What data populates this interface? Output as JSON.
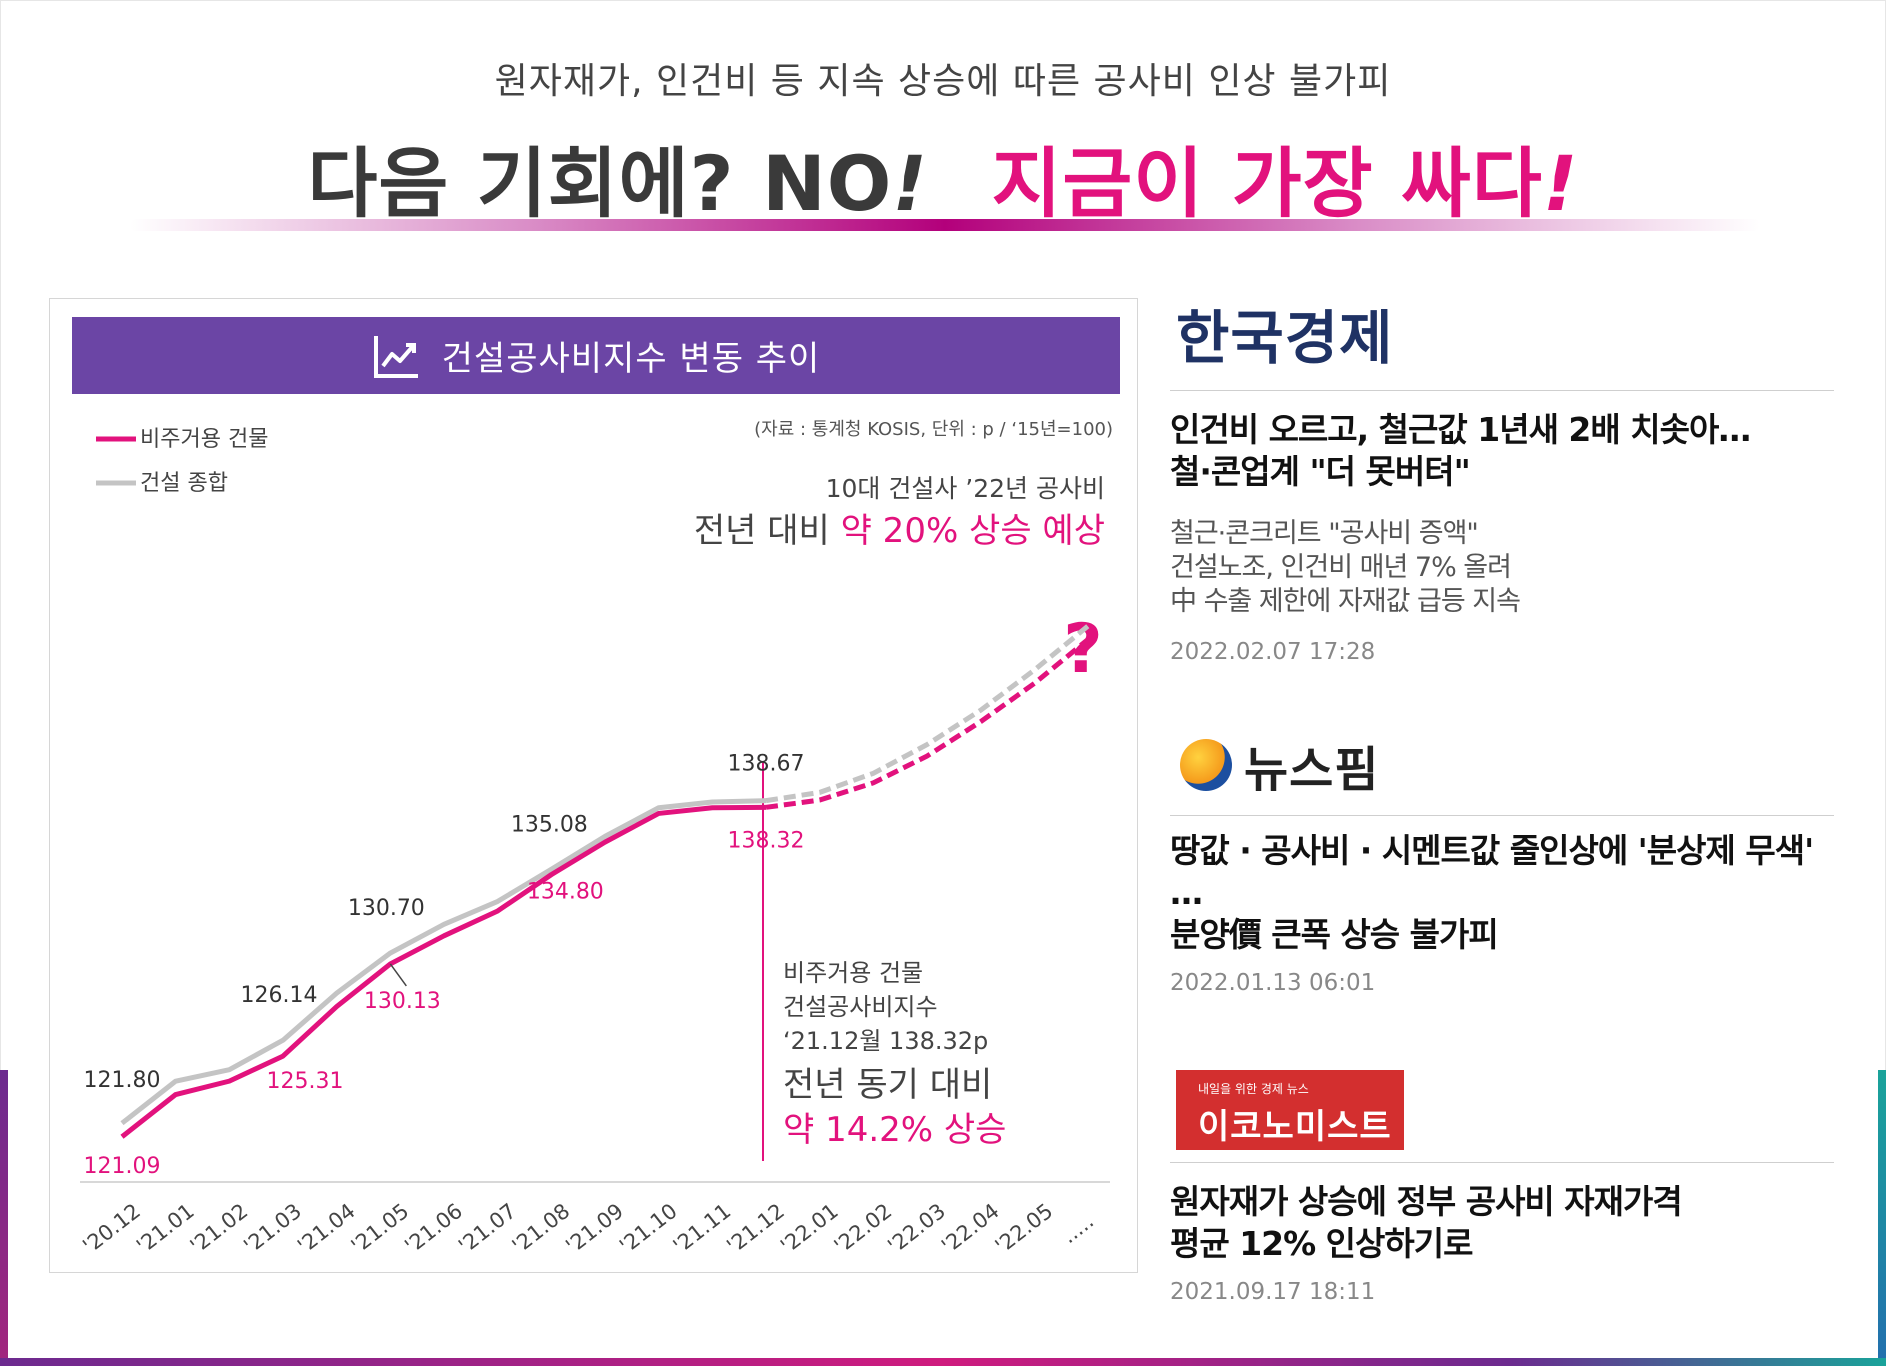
{
  "header": {
    "subtitle": "원자재가, 인건비 등 지속 상승에 따른 공사비 인상 불가피",
    "headline_dark": "다음 기회에? NO",
    "headline_pink": "지금이 가장 싸다",
    "exclaim": "!"
  },
  "chart_panel": {
    "title": "건설공사비지수 변동 추이",
    "icon": "trending-chart-icon",
    "source": "(자료 : 통계청 KOSIS, 단위 : p / ‘15년=100)",
    "forecast_line1": "10대 건설사 ’22년 공사비",
    "forecast_prefix": "전년 대비",
    "forecast_highlight": "약 20% 상승 예상",
    "question_mark": "?",
    "callout_line1": "비주거용 건물",
    "callout_line2": "건설공사비지수",
    "callout_line3": "‘21.12월 138.32p",
    "callout_line4": "전년 동기 대비",
    "callout_line5": "약 14.2% 상승"
  },
  "chart_data": {
    "type": "line",
    "x": [
      "'20.12",
      "'21.01",
      "'21.02",
      "'21.03",
      "'21.04",
      "'21.05",
      "'21.06",
      "'21.07",
      "'21.08",
      "'21.09",
      "'21.10",
      "'21.11",
      "'21.12",
      "'22.01",
      "'22.02",
      "'22.03",
      "'22.04",
      "'22.05",
      "....."
    ],
    "series": [
      {
        "name": "비주거용 건물",
        "color": "#e2127d",
        "values": [
          121.09,
          123.3,
          124.0,
          125.31,
          127.9,
          130.13,
          131.6,
          132.9,
          134.8,
          136.5,
          138.0,
          138.3,
          138.32,
          null,
          null,
          null,
          null,
          null,
          null
        ],
        "labels": {
          "0": "121.09",
          "3": "125.31",
          "5": "130.13",
          "8": "134.80",
          "12": "138.32"
        },
        "projection": [
          [
            12,
            138.32
          ],
          [
            13,
            138.7
          ],
          [
            14,
            139.6
          ],
          [
            15,
            141.0
          ],
          [
            16,
            142.8
          ],
          [
            17,
            144.8
          ],
          [
            18,
            147.1
          ]
        ]
      },
      {
        "name": "건설 종합",
        "color": "#c4c4c4",
        "values": [
          121.8,
          124.0,
          124.6,
          126.14,
          128.6,
          130.7,
          132.2,
          133.4,
          135.08,
          136.8,
          138.3,
          138.6,
          138.67,
          null,
          null,
          null,
          null,
          null,
          null
        ],
        "labels": {
          "0": "121.80",
          "3": "126.14",
          "5": "130.70",
          "8": "135.08",
          "12": "138.67"
        },
        "projection": [
          [
            12,
            138.67
          ],
          [
            13,
            139.1
          ],
          [
            14,
            140.1
          ],
          [
            15,
            141.6
          ],
          [
            16,
            143.4
          ],
          [
            17,
            145.5
          ],
          [
            18,
            147.8
          ]
        ]
      }
    ],
    "ylim": [
      119.3,
      150.0
    ],
    "grid": false,
    "legend": "top-left"
  },
  "news": [
    {
      "outlet": "한국경제",
      "headline1": "인건비 오르고, 철근값 1년새 2배 치솟아…",
      "headline2": "철·콘업계 \"더 못버텨\"",
      "body1": "철근·콘크리트 \"공사비 증액\"",
      "body2": "건설노조, 인건비 매년 7% 올려",
      "body3": "中 수출 제한에 자재값 급등 지속",
      "date": "2022.02.07 17:28"
    },
    {
      "outlet": "뉴스핌",
      "headline1": "땅값 · 공사비 · 시멘트값 줄인상에 '분상제 무색' …",
      "headline2": "분양價 큰폭 상승 불가피",
      "date": "2022.01.13 06:01"
    },
    {
      "outlet_small": "내일을 위한 경제 뉴스",
      "outlet": "이코노미스트",
      "headline1": "원자재가 상승에 정부 공사비 자재가격",
      "headline2": "평균 12% 인상하기로",
      "date": "2021.09.17 18:11"
    }
  ]
}
